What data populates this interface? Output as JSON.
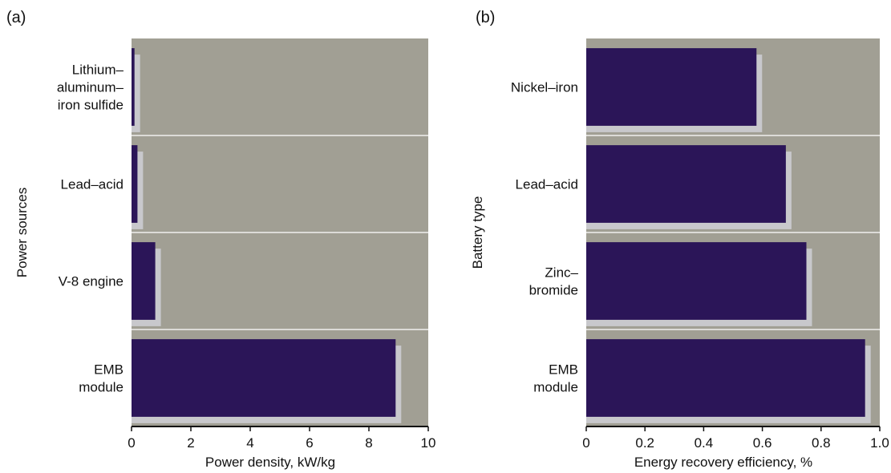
{
  "chart_data": [
    {
      "panel": "(a)",
      "type": "bar",
      "orientation": "horizontal",
      "categories": [
        [
          "Lithium–",
          "aluminum–",
          "iron sulfide"
        ],
        [
          "Lead–acid"
        ],
        [
          "V-8 engine"
        ],
        [
          "EMB",
          "module"
        ]
      ],
      "values": [
        0.1,
        0.2,
        0.8,
        8.9
      ],
      "xlabel": "Power density, kW/kg",
      "ylabel": "Power sources",
      "xlim": [
        0,
        10
      ],
      "xticks": [
        "0",
        "2",
        "4",
        "6",
        "8",
        "10"
      ],
      "bar_color": "#2b1558",
      "shadow_color": "#c8c8cc",
      "plot_bg": "#a19f94"
    },
    {
      "panel": "(b)",
      "type": "bar",
      "orientation": "horizontal",
      "categories": [
        [
          "Nickel–iron"
        ],
        [
          "Lead–acid"
        ],
        [
          "Zinc–",
          "bromide"
        ],
        [
          "EMB",
          "module"
        ]
      ],
      "values": [
        0.58,
        0.68,
        0.75,
        0.95
      ],
      "xlabel": "Energy recovery efficiency, %",
      "ylabel": "Battery type",
      "xlim": [
        0,
        1.0
      ],
      "xticks": [
        "0",
        "0.2",
        "0.4",
        "0.6",
        "0.8",
        "1.0"
      ],
      "bar_color": "#2b1558",
      "shadow_color": "#c8c8cc",
      "plot_bg": "#a19f94"
    }
  ]
}
